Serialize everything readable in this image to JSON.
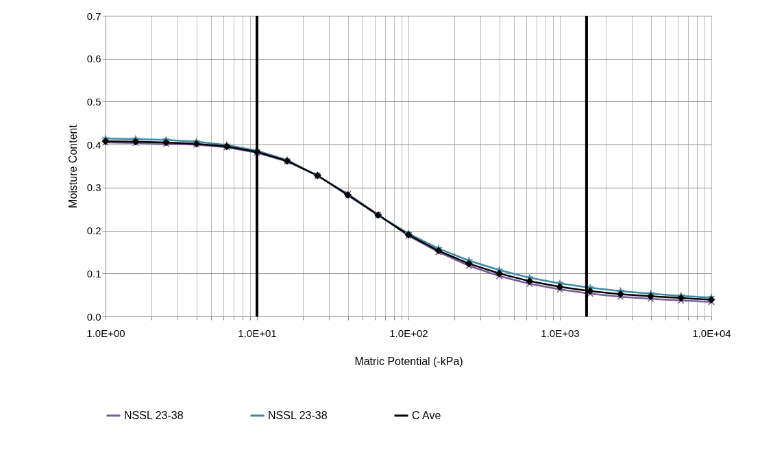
{
  "chart_data": {
    "type": "line",
    "xlabel": "Matric Potential (-kPa)",
    "ylabel": "Moisture Content",
    "log": "x",
    "grid": true,
    "legend": "bottom",
    "line_style": "solid",
    "x": [
      1,
      1.58,
      2.51,
      3.98,
      6.31,
      10,
      15.8,
      25.1,
      39.8,
      63.1,
      100,
      158,
      251,
      398,
      631,
      1000,
      1585,
      2512,
      3981,
      6310,
      10000
    ],
    "series": [
      {
        "name": "NSSL 23-38",
        "color": "#7a5c9c",
        "marker": "cross",
        "values": [
          0.405,
          0.404,
          0.402,
          0.4,
          0.394,
          0.381,
          0.361,
          0.328,
          0.285,
          0.237,
          0.188,
          0.15,
          0.118,
          0.094,
          0.076,
          0.063,
          0.053,
          0.046,
          0.041,
          0.037,
          0.034
        ]
      },
      {
        "name": "NSSL 23-38",
        "color": "#3a8ba6",
        "marker": "star",
        "values": [
          0.414,
          0.413,
          0.411,
          0.407,
          0.399,
          0.386,
          0.364,
          0.328,
          0.282,
          0.236,
          0.193,
          0.158,
          0.13,
          0.108,
          0.09,
          0.077,
          0.067,
          0.059,
          0.053,
          0.048,
          0.044
        ]
      },
      {
        "name": "C Ave",
        "color": "#000000",
        "marker": "diamond",
        "values": [
          0.408,
          0.407,
          0.405,
          0.402,
          0.396,
          0.383,
          0.362,
          0.328,
          0.283,
          0.236,
          0.19,
          0.153,
          0.123,
          0.1,
          0.082,
          0.069,
          0.059,
          0.052,
          0.047,
          0.043,
          0.039
        ]
      }
    ],
    "xlim": [
      1,
      10000
    ],
    "xticks": [
      {
        "value": 1,
        "label": "1.0E+00"
      },
      {
        "value": 2,
        "label": null
      },
      {
        "value": 3,
        "label": null
      },
      {
        "value": 4,
        "label": null
      },
      {
        "value": 5,
        "label": null
      },
      {
        "value": 6,
        "label": null
      },
      {
        "value": 7,
        "label": null
      },
      {
        "value": 8,
        "label": null
      },
      {
        "value": 9,
        "label": null
      },
      {
        "value": 10,
        "label": "1.0E+01"
      },
      {
        "value": 20,
        "label": null
      },
      {
        "value": 30,
        "label": null
      },
      {
        "value": 40,
        "label": null
      },
      {
        "value": 50,
        "label": null
      },
      {
        "value": 60,
        "label": null
      },
      {
        "value": 70,
        "label": null
      },
      {
        "value": 80,
        "label": null
      },
      {
        "value": 90,
        "label": null
      },
      {
        "value": 100,
        "label": "1.0E+02"
      },
      {
        "value": 200,
        "label": null
      },
      {
        "value": 300,
        "label": null
      },
      {
        "value": 400,
        "label": null
      },
      {
        "value": 500,
        "label": null
      },
      {
        "value": 600,
        "label": null
      },
      {
        "value": 700,
        "label": null
      },
      {
        "value": 800,
        "label": null
      },
      {
        "value": 900,
        "label": null
      },
      {
        "value": 1000,
        "label": "1.0E+03"
      },
      {
        "value": 2000,
        "label": null
      },
      {
        "value": 3000,
        "label": null
      },
      {
        "value": 4000,
        "label": null
      },
      {
        "value": 5000,
        "label": null
      },
      {
        "value": 6000,
        "label": null
      },
      {
        "value": 7000,
        "label": null
      },
      {
        "value": 8000,
        "label": null
      },
      {
        "value": 9000,
        "label": null
      },
      {
        "value": 10000,
        "label": "1.0E+04"
      }
    ],
    "ylim": [
      0,
      0.7
    ],
    "yticks": [
      {
        "value": 0,
        "label": "0.0"
      },
      {
        "value": 0.1,
        "label": "0.1"
      },
      {
        "value": 0.2,
        "label": "0.2"
      },
      {
        "value": 0.3,
        "label": "0.3"
      },
      {
        "value": 0.4,
        "label": "0.4"
      },
      {
        "value": 0.5,
        "label": "0.5"
      },
      {
        "value": 0.6,
        "label": "0.6"
      },
      {
        "value": 0.7,
        "label": "0.7"
      }
    ],
    "ref_lines": [
      {
        "axis": "x",
        "value": 10,
        "color": "#000000"
      },
      {
        "axis": "x",
        "value": 1500,
        "color": "#000000"
      }
    ]
  }
}
